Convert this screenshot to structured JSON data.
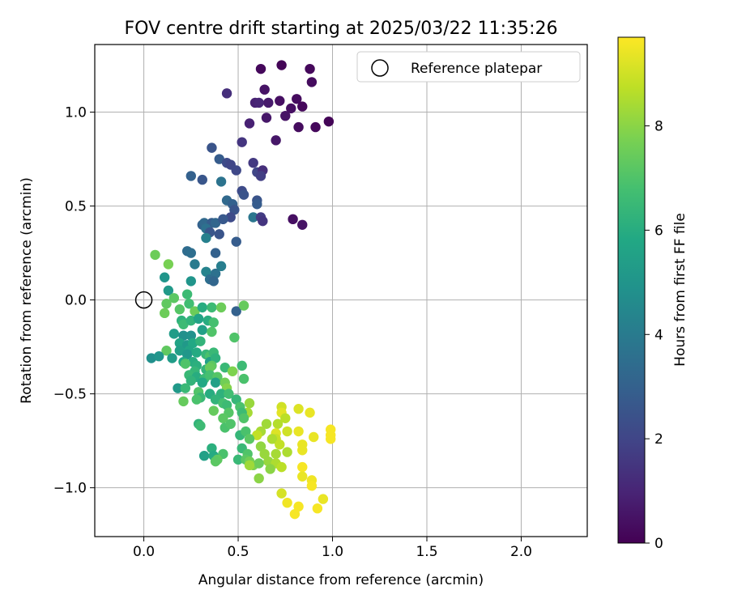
{
  "chart_data": {
    "type": "scatter",
    "title": "FOV centre drift starting at 2025/03/22 11:35:26",
    "xlabel": "Angular distance from reference (arcmin)",
    "ylabel": "Rotation from reference (arcmin)",
    "xlim": [
      -0.26,
      2.35
    ],
    "ylim": [
      -1.26,
      1.36
    ],
    "xticks": [
      0.0,
      0.5,
      1.0,
      1.5,
      2.0
    ],
    "xtick_labels": [
      "0.0",
      "0.5",
      "1.0",
      "1.5",
      "2.0"
    ],
    "yticks": [
      -1.0,
      -0.5,
      0.0,
      0.5,
      1.0
    ],
    "ytick_labels": [
      "−1.0",
      "−0.5",
      "0.0",
      "0.5",
      "1.0"
    ],
    "grid": true,
    "legend": {
      "position": "top-right",
      "entries": [
        "Reference platepar"
      ]
    },
    "reference_point": {
      "x": 0.0,
      "y": 0.0
    },
    "colorbar": {
      "label": "Hours from first FF file",
      "range": [
        0,
        9.7
      ],
      "ticks": [
        0,
        2,
        4,
        6,
        8
      ],
      "tick_labels": [
        "0",
        "2",
        "4",
        "6",
        "8"
      ],
      "colormap": "viridis"
    },
    "points": [
      [
        0.62,
        1.23,
        0.2
      ],
      [
        0.73,
        1.25,
        0.1
      ],
      [
        0.88,
        1.23,
        0.2
      ],
      [
        0.89,
        1.16,
        0.3
      ],
      [
        0.64,
        1.12,
        0.5
      ],
      [
        0.44,
        1.1,
        1.3
      ],
      [
        0.59,
        1.05,
        0.9
      ],
      [
        0.66,
        1.05,
        0.7
      ],
      [
        0.72,
        1.06,
        0.4
      ],
      [
        0.81,
        1.07,
        0.3
      ],
      [
        0.84,
        1.03,
        0.2
      ],
      [
        0.78,
        1.02,
        0.4
      ],
      [
        0.75,
        0.98,
        0.5
      ],
      [
        0.65,
        0.97,
        0.6
      ],
      [
        0.56,
        0.94,
        0.9
      ],
      [
        0.82,
        0.92,
        0.3
      ],
      [
        0.91,
        0.92,
        0.2
      ],
      [
        0.98,
        0.95,
        0.1
      ],
      [
        0.61,
        1.05,
        1.0
      ],
      [
        0.52,
        0.84,
        1.5
      ],
      [
        0.7,
        0.85,
        0.6
      ],
      [
        0.36,
        0.81,
        2.5
      ],
      [
        0.4,
        0.75,
        2.8
      ],
      [
        0.44,
        0.73,
        2.2
      ],
      [
        0.46,
        0.72,
        2.0
      ],
      [
        0.49,
        0.69,
        2.1
      ],
      [
        0.58,
        0.73,
        1.6
      ],
      [
        0.6,
        0.68,
        2.0
      ],
      [
        0.63,
        0.69,
        1.3
      ],
      [
        0.62,
        0.66,
        1.8
      ],
      [
        0.25,
        0.66,
        3.0
      ],
      [
        0.31,
        0.64,
        2.6
      ],
      [
        0.41,
        0.63,
        3.7
      ],
      [
        0.52,
        0.58,
        2.2
      ],
      [
        0.53,
        0.56,
        2.5
      ],
      [
        0.44,
        0.53,
        3.3
      ],
      [
        0.47,
        0.51,
        3.0
      ],
      [
        0.6,
        0.53,
        2.5
      ],
      [
        0.6,
        0.51,
        2.8
      ],
      [
        0.48,
        0.48,
        2.5
      ],
      [
        0.46,
        0.44,
        2.2
      ],
      [
        0.58,
        0.44,
        3.8
      ],
      [
        0.62,
        0.44,
        1.7
      ],
      [
        0.63,
        0.42,
        1.5
      ],
      [
        0.79,
        0.43,
        0.4
      ],
      [
        0.84,
        0.4,
        0.5
      ],
      [
        0.31,
        0.4,
        3.0
      ],
      [
        0.32,
        0.41,
        3.3
      ],
      [
        0.36,
        0.41,
        2.8
      ],
      [
        0.38,
        0.41,
        3.2
      ],
      [
        0.42,
        0.43,
        2.7
      ],
      [
        0.33,
        0.38,
        3.6
      ],
      [
        0.35,
        0.36,
        2.6
      ],
      [
        0.4,
        0.35,
        2.5
      ],
      [
        0.33,
        0.33,
        4.2
      ],
      [
        0.49,
        0.31,
        2.8
      ],
      [
        0.23,
        0.26,
        3.4
      ],
      [
        0.25,
        0.25,
        3.5
      ],
      [
        0.06,
        0.24,
        7.5
      ],
      [
        0.13,
        0.19,
        7.7
      ],
      [
        0.27,
        0.19,
        4.0
      ],
      [
        0.38,
        0.25,
        3.0
      ],
      [
        0.41,
        0.18,
        4.1
      ],
      [
        0.33,
        0.15,
        4.3
      ],
      [
        0.38,
        0.14,
        3.6
      ],
      [
        0.11,
        0.12,
        5.0
      ],
      [
        0.35,
        0.11,
        3.5
      ],
      [
        0.37,
        0.1,
        3.2
      ],
      [
        0.25,
        0.1,
        5.0
      ],
      [
        0.13,
        0.05,
        5.2
      ],
      [
        0.23,
        0.03,
        6.6
      ],
      [
        0.16,
        0.01,
        7.2
      ],
      [
        0.24,
        -0.02,
        6.7
      ],
      [
        0.12,
        -0.02,
        7.3
      ],
      [
        0.11,
        -0.07,
        7.5
      ],
      [
        0.19,
        -0.05,
        7.1
      ],
      [
        0.27,
        -0.06,
        7.5
      ],
      [
        0.31,
        -0.04,
        6.0
      ],
      [
        0.36,
        -0.04,
        6.6
      ],
      [
        0.41,
        -0.04,
        7.5
      ],
      [
        0.49,
        -0.06,
        3.0
      ],
      [
        0.53,
        -0.03,
        7.4
      ],
      [
        0.2,
        -0.11,
        6.2
      ],
      [
        0.21,
        -0.13,
        6.6
      ],
      [
        0.25,
        -0.11,
        6.3
      ],
      [
        0.29,
        -0.1,
        5.6
      ],
      [
        0.34,
        -0.11,
        6.0
      ],
      [
        0.37,
        -0.12,
        6.8
      ],
      [
        0.16,
        -0.18,
        5.3
      ],
      [
        0.21,
        -0.19,
        4.8
      ],
      [
        0.25,
        -0.19,
        4.9
      ],
      [
        0.31,
        -0.16,
        5.5
      ],
      [
        0.36,
        -0.17,
        7.0
      ],
      [
        0.48,
        -0.2,
        7.0
      ],
      [
        0.19,
        -0.23,
        5.6
      ],
      [
        0.23,
        -0.24,
        5.2
      ],
      [
        0.26,
        -0.23,
        5.8
      ],
      [
        0.3,
        -0.22,
        6.3
      ],
      [
        0.24,
        -0.27,
        5.7
      ],
      [
        0.12,
        -0.27,
        7.3
      ],
      [
        0.19,
        -0.27,
        5.4
      ],
      [
        0.23,
        -0.29,
        5.1
      ],
      [
        0.28,
        -0.28,
        5.9
      ],
      [
        0.33,
        -0.29,
        6.4
      ],
      [
        0.35,
        -0.3,
        6.9
      ],
      [
        0.37,
        -0.28,
        6.5
      ],
      [
        0.15,
        -0.31,
        5.3
      ],
      [
        0.04,
        -0.31,
        4.8
      ],
      [
        0.08,
        -0.3,
        5.0
      ],
      [
        0.21,
        -0.33,
        5.7
      ],
      [
        0.26,
        -0.33,
        6.0
      ],
      [
        0.35,
        -0.33,
        5.5
      ],
      [
        0.38,
        -0.31,
        6.2
      ],
      [
        0.28,
        -0.35,
        6.1
      ],
      [
        0.22,
        -0.34,
        7.0
      ],
      [
        0.36,
        -0.35,
        7.2
      ],
      [
        0.43,
        -0.36,
        6.5
      ],
      [
        0.52,
        -0.35,
        6.6
      ],
      [
        0.27,
        -0.38,
        6.4
      ],
      [
        0.33,
        -0.37,
        6.3
      ],
      [
        0.35,
        -0.36,
        7.4
      ],
      [
        0.47,
        -0.38,
        7.8
      ],
      [
        0.24,
        -0.4,
        6.5
      ],
      [
        0.28,
        -0.41,
        6.0
      ],
      [
        0.32,
        -0.42,
        6.6
      ],
      [
        0.35,
        -0.4,
        6.8
      ],
      [
        0.39,
        -0.41,
        7.1
      ],
      [
        0.53,
        -0.42,
        6.9
      ],
      [
        0.25,
        -0.43,
        6.3
      ],
      [
        0.31,
        -0.44,
        5.8
      ],
      [
        0.38,
        -0.44,
        5.5
      ],
      [
        0.43,
        -0.44,
        7.6
      ],
      [
        0.18,
        -0.47,
        5.2
      ],
      [
        0.22,
        -0.47,
        6.5
      ],
      [
        0.44,
        -0.47,
        7.9
      ],
      [
        0.29,
        -0.49,
        7.0
      ],
      [
        0.35,
        -0.5,
        6.0
      ],
      [
        0.41,
        -0.5,
        6.2
      ],
      [
        0.45,
        -0.5,
        6.7
      ],
      [
        0.3,
        -0.52,
        6.5
      ],
      [
        0.28,
        -0.53,
        6.9
      ],
      [
        0.21,
        -0.54,
        7.4
      ],
      [
        0.38,
        -0.53,
        6.3
      ],
      [
        0.49,
        -0.53,
        6.4
      ],
      [
        0.42,
        -0.55,
        6.8
      ],
      [
        0.44,
        -0.56,
        6.6
      ],
      [
        0.56,
        -0.55,
        8.2
      ],
      [
        0.51,
        -0.57,
        6.9
      ],
      [
        0.55,
        -0.6,
        8.4
      ],
      [
        0.45,
        -0.6,
        7.1
      ],
      [
        0.52,
        -0.6,
        6.6
      ],
      [
        0.37,
        -0.59,
        7.4
      ],
      [
        0.73,
        -0.57,
        9.0
      ],
      [
        0.73,
        -0.6,
        9.3
      ],
      [
        0.82,
        -0.58,
        9.2
      ],
      [
        0.88,
        -0.6,
        9.4
      ],
      [
        0.75,
        -0.63,
        8.7
      ],
      [
        0.53,
        -0.63,
        7.0
      ],
      [
        0.42,
        -0.63,
        7.2
      ],
      [
        0.29,
        -0.66,
        6.3
      ],
      [
        0.3,
        -0.67,
        6.6
      ],
      [
        0.43,
        -0.68,
        6.9
      ],
      [
        0.46,
        -0.66,
        7.0
      ],
      [
        0.65,
        -0.66,
        8.3
      ],
      [
        0.71,
        -0.66,
        8.6
      ],
      [
        0.62,
        -0.7,
        8.4
      ],
      [
        0.6,
        -0.72,
        8.8
      ],
      [
        0.7,
        -0.71,
        9.2
      ],
      [
        0.7,
        -0.74,
        8.9
      ],
      [
        0.76,
        -0.7,
        9.0
      ],
      [
        0.82,
        -0.7,
        9.4
      ],
      [
        0.99,
        -0.69,
        9.6
      ],
      [
        0.99,
        -0.72,
        9.6
      ],
      [
        0.99,
        -0.74,
        9.6
      ],
      [
        0.9,
        -0.73,
        9.4
      ],
      [
        0.51,
        -0.72,
        6.4
      ],
      [
        0.54,
        -0.7,
        6.9
      ],
      [
        0.56,
        -0.74,
        7.2
      ],
      [
        0.68,
        -0.74,
        8.5
      ],
      [
        0.72,
        -0.77,
        8.8
      ],
      [
        0.84,
        -0.77,
        9.4
      ],
      [
        0.62,
        -0.78,
        8.1
      ],
      [
        0.52,
        -0.79,
        6.5
      ],
      [
        0.36,
        -0.79,
        6.1
      ],
      [
        0.42,
        -0.82,
        6.9
      ],
      [
        0.55,
        -0.82,
        7.0
      ],
      [
        0.64,
        -0.82,
        8.2
      ],
      [
        0.7,
        -0.82,
        8.4
      ],
      [
        0.76,
        -0.81,
        8.5
      ],
      [
        0.84,
        -0.8,
        9.4
      ],
      [
        0.32,
        -0.83,
        5.5
      ],
      [
        0.37,
        -0.83,
        5.9
      ],
      [
        0.39,
        -0.85,
        7.3
      ],
      [
        0.5,
        -0.85,
        6.5
      ],
      [
        0.54,
        -0.85,
        7.2
      ],
      [
        0.56,
        -0.86,
        7.6
      ],
      [
        0.66,
        -0.86,
        8.2
      ],
      [
        0.7,
        -0.87,
        8.5
      ],
      [
        0.73,
        -0.89,
        8.7
      ],
      [
        0.58,
        -0.88,
        7.8
      ],
      [
        0.61,
        -0.87,
        7.5
      ],
      [
        0.56,
        -0.88,
        8.3
      ],
      [
        0.84,
        -0.89,
        9.6
      ],
      [
        0.84,
        -0.94,
        9.4
      ],
      [
        0.61,
        -0.95,
        8.0
      ],
      [
        0.89,
        -0.96,
        9.5
      ],
      [
        0.89,
        -0.99,
        9.6
      ],
      [
        0.73,
        -1.03,
        9.1
      ],
      [
        0.95,
        -1.06,
        9.4
      ],
      [
        0.76,
        -1.08,
        9.5
      ],
      [
        0.82,
        -1.1,
        9.6
      ],
      [
        0.92,
        -1.11,
        9.6
      ],
      [
        0.8,
        -1.14,
        9.6
      ],
      [
        0.38,
        -0.86,
        7.2
      ],
      [
        0.67,
        -0.9,
        8.0
      ]
    ]
  }
}
